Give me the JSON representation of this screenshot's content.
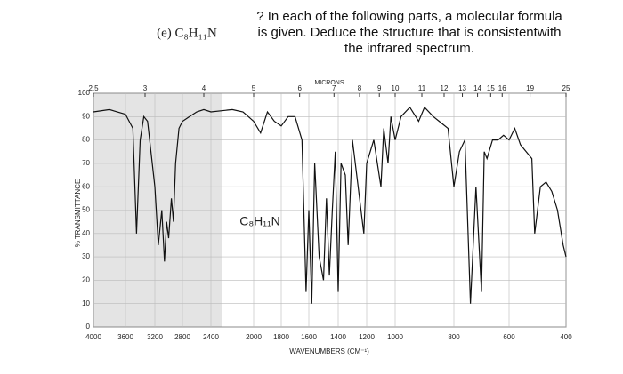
{
  "question": "? In each of the following parts, a molecular formula is given. Deduce the structure that is consistentwith the infrared spectrum.",
  "chart_data": {
    "type": "line",
    "title": "(e) C₈H₁₁N",
    "annotation": "C₈H₁₁N",
    "y_label": "% TRANSMITTANCE",
    "x_label": "WAVENUMBERS (CM⁻¹)",
    "top_label": "MICRONS",
    "micron_ticks": [
      2.5,
      3,
      4,
      5,
      6,
      7,
      8,
      9,
      10,
      11,
      12,
      13,
      14,
      15,
      16,
      19,
      25
    ],
    "xlim": [
      4000,
      400
    ],
    "xticks": [
      4000,
      3600,
      3200,
      2800,
      2400,
      2000,
      1800,
      1600,
      1400,
      1200,
      1000,
      800,
      600,
      400
    ],
    "ylim": [
      0,
      100
    ],
    "yticks": [
      0,
      10,
      20,
      30,
      40,
      50,
      60,
      70,
      80,
      90,
      100
    ],
    "grid": true,
    "series": [
      {
        "name": "C₈H₁₁N",
        "color": "#111111",
        "x": [
          4000,
          3800,
          3600,
          3500,
          3450,
          3400,
          3350,
          3300,
          3200,
          3150,
          3100,
          3060,
          3030,
          3000,
          2960,
          2930,
          2900,
          2850,
          2800,
          2700,
          2600,
          2500,
          2400,
          2200,
          2100,
          2000,
          1950,
          1900,
          1850,
          1800,
          1750,
          1700,
          1650,
          1620,
          1600,
          1580,
          1560,
          1530,
          1500,
          1480,
          1460,
          1440,
          1420,
          1400,
          1380,
          1350,
          1330,
          1300,
          1250,
          1220,
          1200,
          1150,
          1100,
          1080,
          1050,
          1030,
          1000,
          980,
          950,
          920,
          900,
          870,
          850,
          820,
          800,
          780,
          760,
          740,
          720,
          700,
          690,
          680,
          660,
          640,
          620,
          600,
          580,
          560,
          540,
          520,
          510,
          490,
          470,
          450,
          430,
          410,
          400
        ],
        "values": [
          92,
          93,
          91,
          85,
          40,
          80,
          90,
          88,
          60,
          35,
          50,
          28,
          45,
          38,
          55,
          45,
          70,
          85,
          88,
          90,
          92,
          93,
          92,
          93,
          92,
          88,
          83,
          92,
          88,
          86,
          90,
          90,
          80,
          15,
          50,
          10,
          70,
          30,
          20,
          55,
          22,
          50,
          75,
          15,
          70,
          65,
          35,
          80,
          55,
          40,
          70,
          80,
          60,
          85,
          70,
          90,
          80,
          90,
          94,
          88,
          94,
          90,
          88,
          85,
          60,
          75,
          80,
          10,
          60,
          15,
          75,
          72,
          80,
          80,
          82,
          80,
          85,
          78,
          75,
          72,
          40,
          60,
          62,
          58,
          50,
          35,
          30
        ]
      }
    ]
  }
}
